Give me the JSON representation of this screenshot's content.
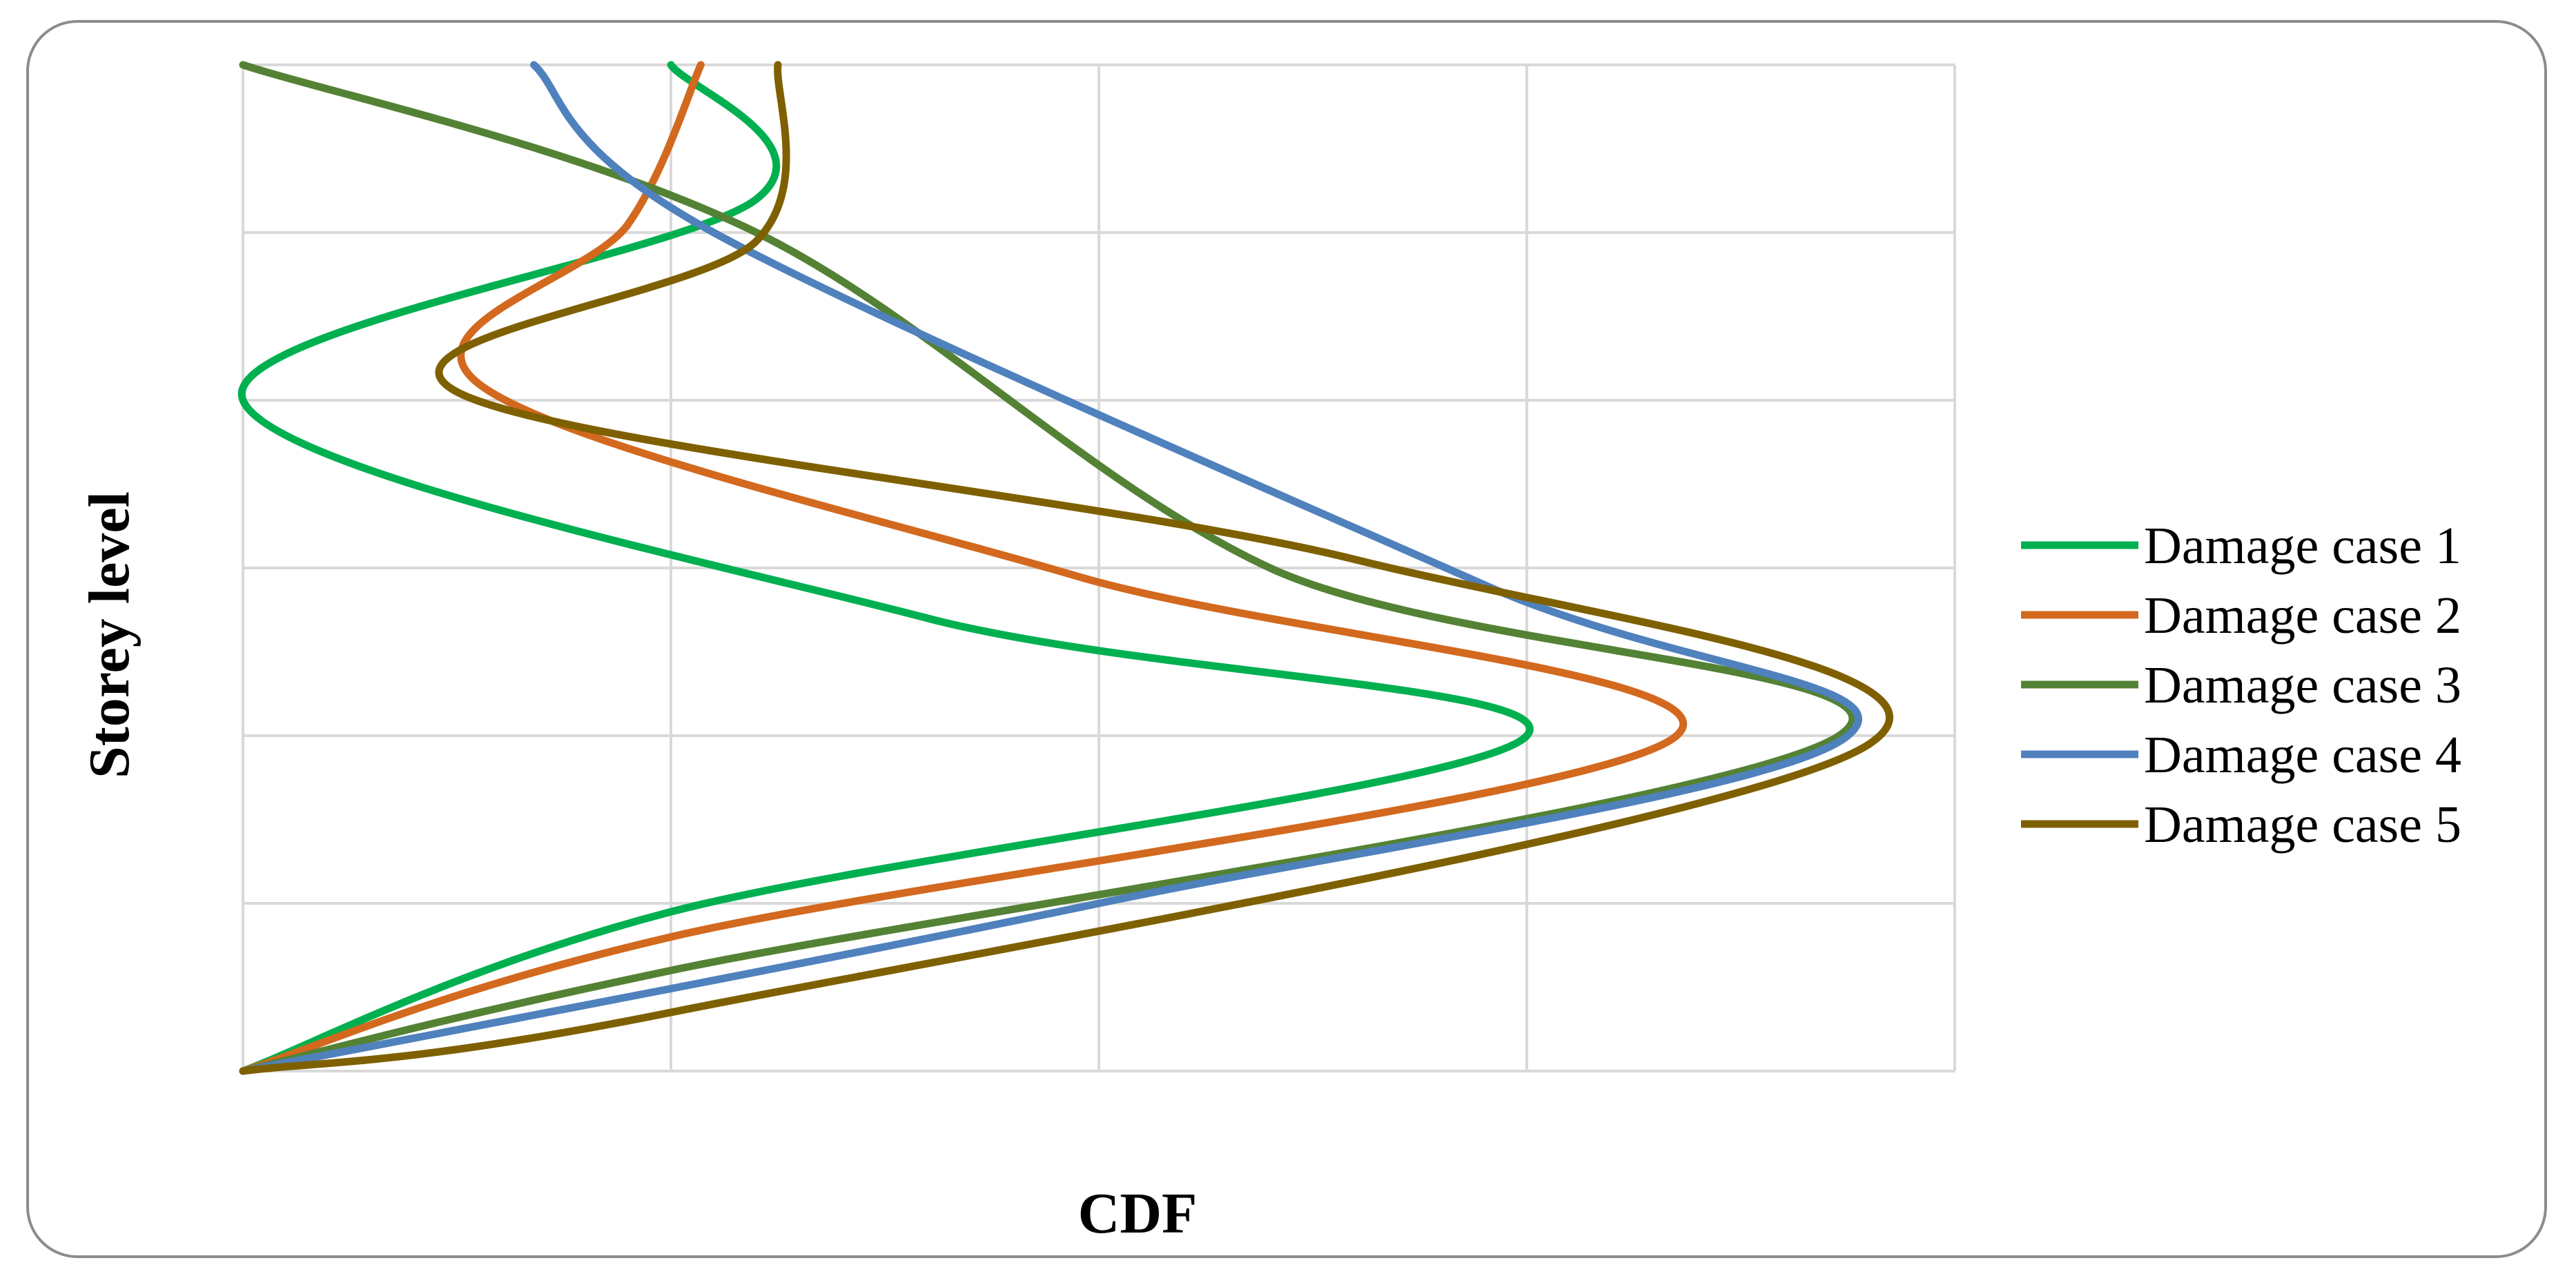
{
  "chart_data": {
    "type": "line",
    "title": "",
    "xlabel": "CDF",
    "ylabel": "Storey level",
    "xlim": [
      0,
      4
    ],
    "ylim": [
      0,
      6
    ],
    "grid": true,
    "legend_position": "right",
    "series": [
      {
        "name": "Damage case 1",
        "color": "#00b050",
        "points": [
          [
            0,
            0
          ],
          [
            1.0,
            0.95
          ],
          [
            3.0,
            2.0
          ],
          [
            1.6,
            2.7
          ],
          [
            0.0,
            4.0
          ],
          [
            1.2,
            5.2
          ],
          [
            1.0,
            6.0
          ]
        ]
      },
      {
        "name": "Damage case 2",
        "color": "#d2691e",
        "points": [
          [
            0,
            0
          ],
          [
            1.0,
            0.8
          ],
          [
            3.35,
            2.0
          ],
          [
            1.95,
            2.95
          ],
          [
            0.55,
            4.1
          ],
          [
            0.9,
            5.05
          ],
          [
            1.07,
            6.0
          ]
        ]
      },
      {
        "name": "Damage case 3",
        "color": "#548235",
        "points": [
          [
            0,
            0
          ],
          [
            1.0,
            0.6
          ],
          [
            3.73,
            2.0
          ],
          [
            2.4,
            3.0
          ],
          [
            1.2,
            5.0
          ],
          [
            0.0,
            6.0
          ]
        ]
      },
      {
        "name": "Damage case 4",
        "color": "#4f81bd",
        "points": [
          [
            0,
            0
          ],
          [
            2.0,
            1.0
          ],
          [
            3.75,
            2.0
          ],
          [
            2.9,
            2.9
          ],
          [
            1.1,
            5.0
          ],
          [
            0.68,
            6.0
          ]
        ]
      },
      {
        "name": "Damage case 5",
        "color": "#7f6000",
        "points": [
          [
            0,
            0
          ],
          [
            1.0,
            0.35
          ],
          [
            3.8,
            1.95
          ],
          [
            2.6,
            3.05
          ],
          [
            0.5,
            4.05
          ],
          [
            1.2,
            4.95
          ],
          [
            1.25,
            6.0
          ]
        ]
      }
    ]
  }
}
